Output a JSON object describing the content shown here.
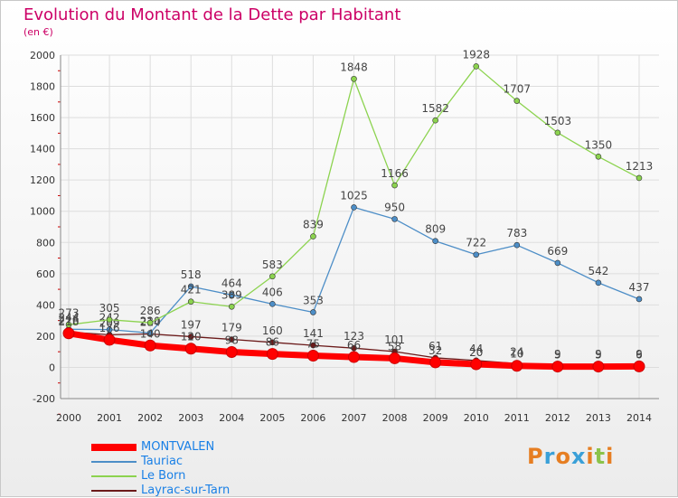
{
  "title": "Evolution du Montant de la Dette par Habitant",
  "unit_label": "(en €)",
  "logo": {
    "text": "Proxiti",
    "colors": [
      "#e67e22",
      "#3aa0d8",
      "#e67e22",
      "#3aa0d8",
      "#e67e22",
      "#8bc34a",
      "#e67e22"
    ]
  },
  "chart_data": {
    "type": "line",
    "categories": [
      "2000",
      "2001",
      "2002",
      "2003",
      "2004",
      "2005",
      "2006",
      "2007",
      "2008",
      "2009",
      "2010",
      "2011",
      "2012",
      "2013",
      "2014"
    ],
    "ylim": [
      -200,
      2000
    ],
    "yticks": [
      -200,
      0,
      200,
      400,
      600,
      800,
      1000,
      1200,
      1400,
      1600,
      1800,
      2000
    ],
    "grid": true,
    "legend_position": "bottom-left",
    "series": [
      {
        "name": "MONTVALEN",
        "color": "#ff0000",
        "values": [
          218,
          176,
          140,
          120,
          98,
          86,
          75,
          66,
          58,
          32,
          20,
          10,
          5,
          5,
          6
        ],
        "labels": [
          "218",
          "176",
          "140",
          "120",
          "98",
          "86",
          "75",
          "66",
          "58",
          "32",
          "20",
          "10",
          "5",
          "5",
          "6"
        ]
      },
      {
        "name": "Tauriac",
        "color": "#4d8ec7",
        "values": [
          244,
          242,
          220,
          518,
          464,
          406,
          353,
          1025,
          950,
          809,
          722,
          783,
          669,
          542,
          437
        ],
        "labels": [
          "244",
          "242",
          "220",
          "518",
          "464",
          "406",
          "353",
          "1025",
          "950",
          "809",
          "722",
          "783",
          "669",
          "542",
          "437"
        ]
      },
      {
        "name": "Le Born",
        "color": "#8cd34f",
        "values": [
          273,
          305,
          286,
          421,
          389,
          583,
          839,
          1848,
          1166,
          1582,
          1928,
          1707,
          1503,
          1350,
          1213
        ],
        "labels": [
          "273",
          "305",
          "286",
          "421",
          "389",
          "583",
          "839",
          "1848",
          "1166",
          "1582",
          "1928",
          "1707",
          "1503",
          "1350",
          "1213"
        ]
      },
      {
        "name": "Layrac-sur-Tarn",
        "color": "#6b1a1a",
        "values": [
          226,
          209,
          214,
          197,
          179,
          160,
          141,
          123,
          101,
          61,
          44,
          24,
          9,
          9,
          9
        ],
        "labels": [
          "226",
          "209",
          "214",
          "197",
          "179",
          "160",
          "141",
          "123",
          "101",
          "61",
          "44",
          "24",
          "9",
          "9",
          "9"
        ]
      }
    ]
  }
}
